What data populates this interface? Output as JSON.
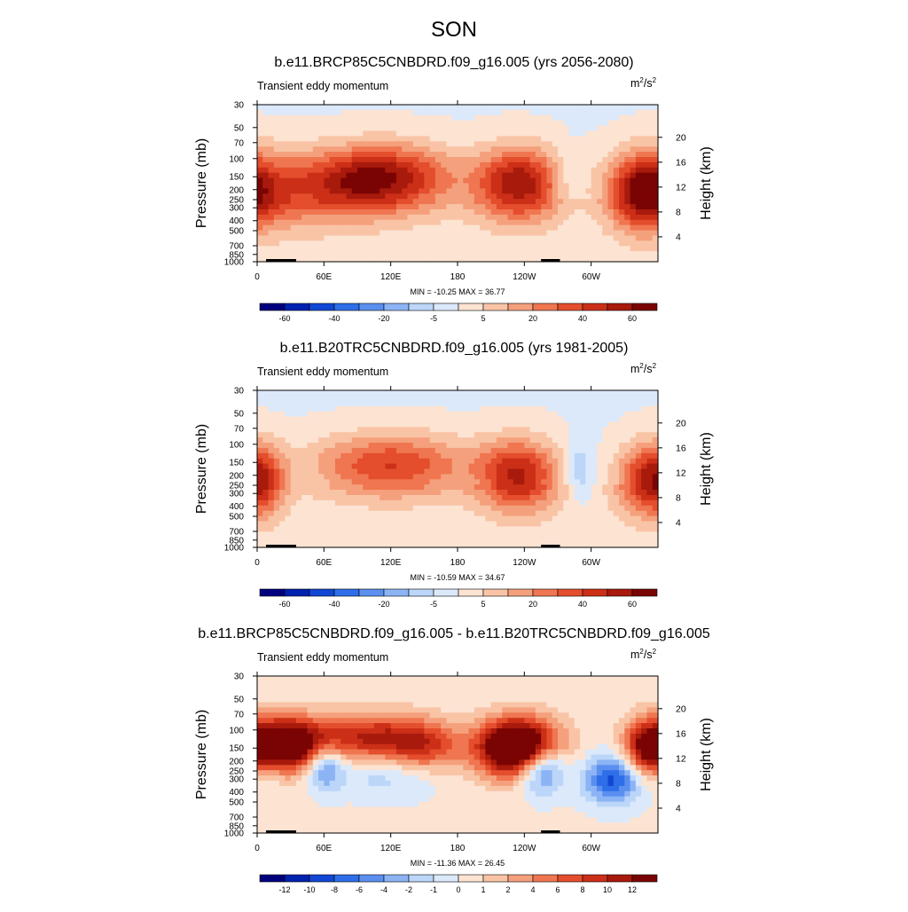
{
  "figure": {
    "title": "SON"
  },
  "chart_data": [
    {
      "type": "heatmap",
      "title": "b.e11.BRCP85C5CNBDRD.f09_g16.005 (yrs 2056-2080)",
      "field": "Transient eddy momentum",
      "units_base": "m",
      "units_exp": "2",
      "units_tail": "/s",
      "units_tail_exp": "2",
      "ylabel": "Pressure (mb)",
      "y2label": "Height (km)",
      "stats": "MIN = -10.25  MAX =  36.77",
      "xticks": [
        "0",
        "60E",
        "120E",
        "180",
        "120W",
        "60W"
      ],
      "yticks": [
        30,
        50,
        70,
        100,
        150,
        200,
        250,
        300,
        400,
        500,
        700,
        850,
        1000
      ],
      "y2ticks": [
        20,
        16,
        12,
        8,
        4
      ],
      "colorbar_labels": [
        "-60",
        "-40",
        "-20",
        "-5",
        "5",
        "20",
        "40",
        "60"
      ],
      "colorbar_colors": [
        "#00007f",
        "#0022b0",
        "#1247d4",
        "#2e6ee8",
        "#5a8ff0",
        "#8cb4f5",
        "#bcd6f9",
        "#dbe9fb",
        "#fce3d2",
        "#f9c4a6",
        "#f5a07c",
        "#ef7650",
        "#e44e2d",
        "#cc2f17",
        "#a81a0c",
        "#7a0403"
      ],
      "features": [
        {
          "lon": 35,
          "p": 190,
          "dlon": 45,
          "dz": 1.7,
          "amp": 20
        },
        {
          "lon": 130,
          "p": 155,
          "dlon": 35,
          "dz": 1.5,
          "amp": 24
        },
        {
          "lon": 235,
          "p": 175,
          "dlon": 28,
          "dz": 1.6,
          "amp": 30
        },
        {
          "lon": 90,
          "p": 160,
          "dlon": 25,
          "dz": 1.4,
          "amp": 12
        },
        {
          "lon": 345,
          "p": 210,
          "dlon": 20,
          "dz": 1.7,
          "amp": 26
        },
        {
          "lon": 280,
          "p": 150,
          "dlon": 10,
          "dz": 1.3,
          "amp": -6
        }
      ]
    },
    {
      "type": "heatmap",
      "title": "b.e11.B20TRC5CNBDRD.f09_g16.005 (yrs 1981-2005)",
      "field": "Transient eddy momentum",
      "units_base": "m",
      "units_exp": "2",
      "units_tail": "/s",
      "units_tail_exp": "2",
      "ylabel": "Pressure (mb)",
      "y2label": "Height (km)",
      "stats": "MIN = -10.59  MAX =  34.67",
      "xticks": [
        "0",
        "60E",
        "120E",
        "180",
        "120W",
        "60W"
      ],
      "yticks": [
        30,
        50,
        70,
        100,
        150,
        200,
        250,
        300,
        400,
        500,
        700,
        850,
        1000
      ],
      "y2ticks": [
        20,
        16,
        12,
        8,
        4
      ],
      "colorbar_labels": [
        "-60",
        "-40",
        "-20",
        "-5",
        "5",
        "20",
        "40",
        "60"
      ],
      "colorbar_colors": [
        "#00007f",
        "#0022b0",
        "#1247d4",
        "#2e6ee8",
        "#5a8ff0",
        "#8cb4f5",
        "#bcd6f9",
        "#dbe9fb",
        "#fce3d2",
        "#f9c4a6",
        "#f5a07c",
        "#ef7650",
        "#e44e2d",
        "#cc2f17",
        "#a81a0c",
        "#7a0403"
      ],
      "features": [
        {
          "lon": 5,
          "p": 220,
          "dlon": 15,
          "dz": 1.6,
          "amp": 18
        },
        {
          "lon": 120,
          "p": 160,
          "dlon": 50,
          "dz": 1.4,
          "amp": 22
        },
        {
          "lon": 235,
          "p": 200,
          "dlon": 25,
          "dz": 1.6,
          "amp": 26
        },
        {
          "lon": 290,
          "p": 180,
          "dlon": 8,
          "dz": 1.4,
          "amp": -8
        },
        {
          "lon": 345,
          "p": 220,
          "dlon": 18,
          "dz": 1.6,
          "amp": 18
        }
      ]
    },
    {
      "type": "heatmap",
      "title": "b.e11.BRCP85C5CNBDRD.f09_g16.005 - b.e11.B20TRC5CNBDRD.f09_g16.005",
      "field": "Transient eddy momentum",
      "units_base": "m",
      "units_exp": "2",
      "units_tail": "/s",
      "units_tail_exp": "2",
      "ylabel": "Pressure (mb)",
      "y2label": "Height (km)",
      "stats": "MIN = -11.36  MAX =  26.45",
      "xticks": [
        "0",
        "60E",
        "120E",
        "180",
        "120W",
        "60W"
      ],
      "yticks": [
        30,
        50,
        70,
        100,
        150,
        200,
        250,
        300,
        400,
        500,
        700,
        850,
        1000
      ],
      "y2ticks": [
        20,
        16,
        12,
        8,
        4
      ],
      "colorbar_labels": [
        "-12",
        "-10",
        "-8",
        "-6",
        "-4",
        "-2",
        "-1",
        "0",
        "1",
        "2",
        "4",
        "6",
        "8",
        "10",
        "12"
      ],
      "colorbar_colors": [
        "#00007f",
        "#0022b0",
        "#1247d4",
        "#2e6ee8",
        "#5a8ff0",
        "#8cb4f5",
        "#bcd6f9",
        "#dbe9fb",
        "#fce3d2",
        "#f9c4a6",
        "#f5a07c",
        "#ef7650",
        "#e44e2d",
        "#cc2f17",
        "#a81a0c",
        "#7a0403"
      ],
      "features": [
        {
          "lon": 25,
          "p": 140,
          "dlon": 25,
          "dz": 1.2,
          "amp": 18
        },
        {
          "lon": 100,
          "p": 120,
          "dlon": 35,
          "dz": 1.1,
          "amp": 10
        },
        {
          "lon": 150,
          "p": 150,
          "dlon": 25,
          "dz": 1.2,
          "amp": 8
        },
        {
          "lon": 235,
          "p": 150,
          "dlon": 25,
          "dz": 1.3,
          "amp": 22
        },
        {
          "lon": 60,
          "p": 220,
          "dlon": 12,
          "dz": 1.0,
          "amp": -8
        },
        {
          "lon": 120,
          "p": 250,
          "dlon": 35,
          "dz": 1.1,
          "amp": -4
        },
        {
          "lon": 255,
          "p": 230,
          "dlon": 15,
          "dz": 1.1,
          "amp": -12
        },
        {
          "lon": 320,
          "p": 300,
          "dlon": 18,
          "dz": 1.1,
          "amp": -10
        },
        {
          "lon": 350,
          "p": 150,
          "dlon": 15,
          "dz": 1.3,
          "amp": 10
        },
        {
          "lon": 10,
          "p": 250,
          "dlon": 10,
          "dz": 1.0,
          "amp": -3
        }
      ]
    }
  ]
}
